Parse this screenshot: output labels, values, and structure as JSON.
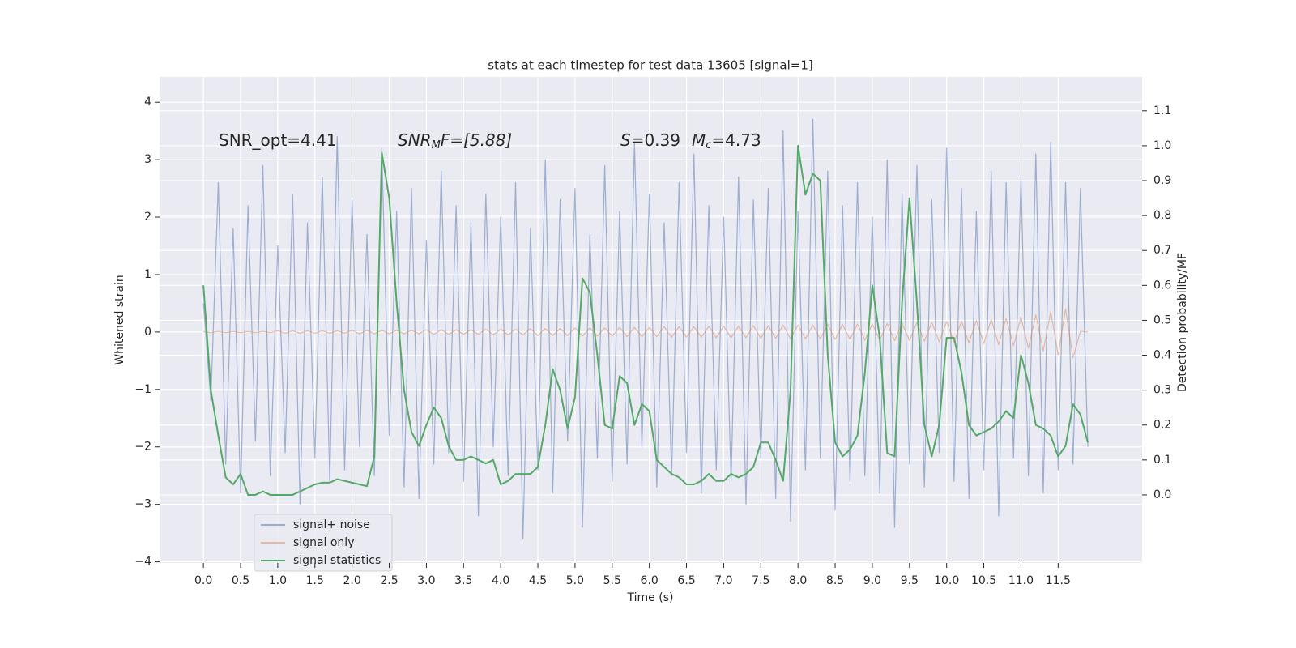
{
  "chart_data": {
    "type": "line",
    "title": "stats at each timestep for test data 13605 [signal=1]",
    "xlabel": "Time (s)",
    "ylabel": "Whitened strain",
    "y2label": "Detection probability/MF",
    "annotations": [
      [
        "SNR_opt=4.41"
      ],
      [
        "SNR",
        "M",
        "F=[5.88]"
      ],
      [
        "S",
        "=0.39",
        "M",
        "c",
        "=4.73"
      ]
    ],
    "grid": true,
    "legend": "lower left",
    "xlim": [
      -0.59,
      12.63
    ],
    "ylim": [
      -4.02,
      4.44
    ],
    "y2lim": [
      -0.195,
      1.197
    ],
    "xticks": [
      {
        "value": 0,
        "label": "0.0"
      },
      0.5,
      {
        "value": 1,
        "label": "1.0"
      },
      1.5,
      {
        "value": 2,
        "label": "2.0"
      },
      2.5,
      {
        "value": 3,
        "label": "3.0"
      },
      3.5,
      {
        "value": 4,
        "label": "4.0"
      },
      4.5,
      {
        "value": 5,
        "label": "5.0"
      },
      5.5,
      {
        "value": 6,
        "label": "6.0"
      },
      6.5,
      {
        "value": 7,
        "label": "7.0"
      },
      7.5,
      {
        "value": 8,
        "label": "8.0"
      },
      8.5,
      {
        "value": 9,
        "label": "9.0"
      },
      9.5,
      {
        "value": 10,
        "label": "10.0"
      },
      10.5,
      {
        "value": 11,
        "label": "11.0"
      },
      11.5
    ],
    "yticks": [
      {
        "value": -4,
        "label": "−4"
      },
      {
        "value": -3,
        "label": "−3"
      },
      {
        "value": -2,
        "label": "−2"
      },
      {
        "value": -1,
        "label": "−1"
      },
      0,
      1,
      2,
      3,
      4
    ],
    "y2ticks": [
      {
        "value": 0,
        "label": "0.0"
      },
      0.1,
      0.2,
      0.3,
      0.4,
      0.5,
      0.6,
      0.7,
      0.8,
      0.9,
      {
        "value": 1,
        "label": "1.0"
      },
      1.1
    ],
    "x": [
      0,
      0.1,
      0.2,
      0.3,
      0.4,
      0.5,
      0.6,
      0.7,
      0.8,
      0.9,
      1,
      1.1,
      1.2,
      1.3,
      1.4,
      1.5,
      1.6,
      1.7,
      1.8,
      1.9,
      2,
      2.1,
      2.2,
      2.3,
      2.4,
      2.5,
      2.6,
      2.7,
      2.8,
      2.9,
      3,
      3.1,
      3.2,
      3.3,
      3.4,
      3.5,
      3.6,
      3.7,
      3.8,
      3.9,
      4,
      4.1,
      4.2,
      4.3,
      4.4,
      4.5,
      4.6,
      4.7,
      4.8,
      4.9,
      5,
      5.1,
      5.2,
      5.3,
      5.4,
      5.5,
      5.6,
      5.7,
      5.8,
      5.9,
      6,
      6.1,
      6.2,
      6.3,
      6.4,
      6.5,
      6.6,
      6.7,
      6.8,
      6.9,
      7,
      7.1,
      7.2,
      7.3,
      7.4,
      7.5,
      7.6,
      7.7,
      7.8,
      7.9,
      8,
      8.1,
      8.2,
      8.3,
      8.4,
      8.5,
      8.6,
      8.7,
      8.8,
      8.9,
      9,
      9.1,
      9.2,
      9.3,
      9.4,
      9.5,
      9.6,
      9.7,
      9.8,
      9.9,
      10,
      10.1,
      10.2,
      10.3,
      10.4,
      10.5,
      10.6,
      10.7,
      10.8,
      10.9,
      11,
      11.1,
      11.2,
      11.3,
      11.4,
      11.5,
      11.6,
      11.7,
      11.8,
      11.9
    ],
    "series": [
      {
        "name": "signal+ noise",
        "color": "#4c72b0",
        "alpha": 0.5,
        "values": [
          0.5,
          -1.2,
          2.6,
          -2.3,
          1.8,
          -2.8,
          2.2,
          -1.9,
          2.9,
          -2.5,
          1.5,
          -2.1,
          2.4,
          -3.0,
          1.9,
          -2.2,
          2.7,
          -2.6,
          3.4,
          -2.4,
          2.3,
          -2.0,
          1.7,
          -2.5,
          3.2,
          -1.8,
          2.1,
          -2.7,
          2.5,
          -2.9,
          1.6,
          -2.3,
          2.8,
          -2.1,
          2.2,
          -2.6,
          1.9,
          -3.2,
          2.4,
          -2.0,
          2.0,
          -2.5,
          2.6,
          -3.6,
          1.8,
          -2.4,
          3.0,
          -2.8,
          2.3,
          -1.9,
          2.5,
          -3.4,
          1.7,
          -2.2,
          2.9,
          -2.6,
          2.1,
          -2.3,
          3.3,
          -2.0,
          2.4,
          -2.7,
          1.9,
          -2.5,
          2.6,
          -2.1,
          3.1,
          -2.8,
          2.2,
          -2.4,
          2.0,
          -2.6,
          2.7,
          -3.0,
          2.3,
          -2.2,
          2.5,
          -2.9,
          3.5,
          -3.3,
          2.1,
          -2.4,
          3.7,
          -2.2,
          2.8,
          -3.1,
          2.2,
          -2.6,
          2.6,
          -2.5,
          2.0,
          -2.8,
          3.0,
          -3.4,
          2.4,
          -2.3,
          2.9,
          -2.7,
          2.3,
          -2.1,
          3.2,
          -2.6,
          2.5,
          -2.9,
          2.1,
          -2.4,
          2.8,
          -3.2,
          2.6,
          -2.2,
          2.7,
          -2.5,
          3.1,
          -2.8,
          3.3,
          -2.4,
          2.6,
          -2.3,
          2.5,
          -2.0
        ]
      },
      {
        "name": "signal only",
        "color": "#dd8452",
        "alpha": 0.5,
        "values": [
          0.01,
          -0.01,
          0.01,
          -0.01,
          0.01,
          -0.01,
          0.01,
          -0.01,
          0.01,
          -0.01,
          0.02,
          -0.02,
          0.02,
          -0.02,
          0.02,
          -0.02,
          0.02,
          -0.02,
          0.02,
          -0.02,
          0.03,
          -0.03,
          0.03,
          -0.03,
          0.03,
          -0.03,
          0.03,
          -0.03,
          0.03,
          -0.03,
          0.04,
          -0.04,
          0.04,
          -0.04,
          0.04,
          -0.04,
          0.04,
          -0.04,
          0.05,
          -0.05,
          0.05,
          -0.05,
          0.05,
          -0.05,
          0.06,
          -0.06,
          0.06,
          -0.06,
          0.06,
          -0.06,
          0.07,
          -0.07,
          0.07,
          -0.07,
          0.07,
          -0.07,
          0.08,
          -0.08,
          0.08,
          -0.08,
          0.08,
          -0.08,
          0.09,
          -0.09,
          0.09,
          -0.09,
          0.09,
          -0.09,
          0.1,
          -0.1,
          0.1,
          -0.1,
          0.1,
          -0.1,
          0.11,
          -0.11,
          0.11,
          -0.11,
          0.12,
          -0.12,
          0.12,
          -0.12,
          0.12,
          -0.12,
          0.13,
          -0.13,
          0.13,
          -0.13,
          0.14,
          -0.14,
          0.14,
          -0.14,
          0.15,
          -0.15,
          0.15,
          -0.15,
          0.16,
          -0.16,
          0.17,
          -0.17,
          0.18,
          -0.18,
          0.19,
          -0.19,
          0.2,
          -0.2,
          0.22,
          -0.22,
          0.24,
          -0.24,
          0.26,
          -0.28,
          0.3,
          -0.33,
          0.36,
          -0.4,
          0.4,
          -0.45,
          0.01,
          0
        ]
      },
      {
        "name": "signal statistics",
        "color": "#55a868",
        "alpha": 1,
        "axis": "y2",
        "values": [
          0.6,
          0.3,
          0.17,
          0.05,
          0.03,
          0.06,
          0,
          0,
          0.01,
          0,
          0,
          0,
          0,
          0.01,
          0.02,
          0.03,
          0.035,
          0.035,
          0.045,
          0.04,
          0.035,
          0.03,
          0.025,
          0.11,
          0.98,
          0.85,
          0.55,
          0.3,
          0.18,
          0.14,
          0.2,
          0.25,
          0.22,
          0.14,
          0.1,
          0.1,
          0.11,
          0.1,
          0.09,
          0.1,
          0.03,
          0.04,
          0.06,
          0.06,
          0.06,
          0.08,
          0.2,
          0.36,
          0.3,
          0.19,
          0.28,
          0.62,
          0.58,
          0.4,
          0.2,
          0.19,
          0.34,
          0.32,
          0.2,
          0.26,
          0.24,
          0.1,
          0.08,
          0.06,
          0.05,
          0.03,
          0.03,
          0.04,
          0.06,
          0.04,
          0.04,
          0.06,
          0.05,
          0.06,
          0.08,
          0.15,
          0.15,
          0.1,
          0.04,
          0.3,
          1.0,
          0.86,
          0.92,
          0.9,
          0.4,
          0.15,
          0.11,
          0.13,
          0.17,
          0.35,
          0.6,
          0.45,
          0.12,
          0.11,
          0.55,
          0.85,
          0.55,
          0.2,
          0.11,
          0.2,
          0.45,
          0.45,
          0.35,
          0.2,
          0.17,
          0.18,
          0.19,
          0.21,
          0.24,
          0.22,
          0.4,
          0.32,
          0.2,
          0.19,
          0.17,
          0.11,
          0.14,
          0.26,
          0.23,
          0.15
        ]
      }
    ]
  }
}
